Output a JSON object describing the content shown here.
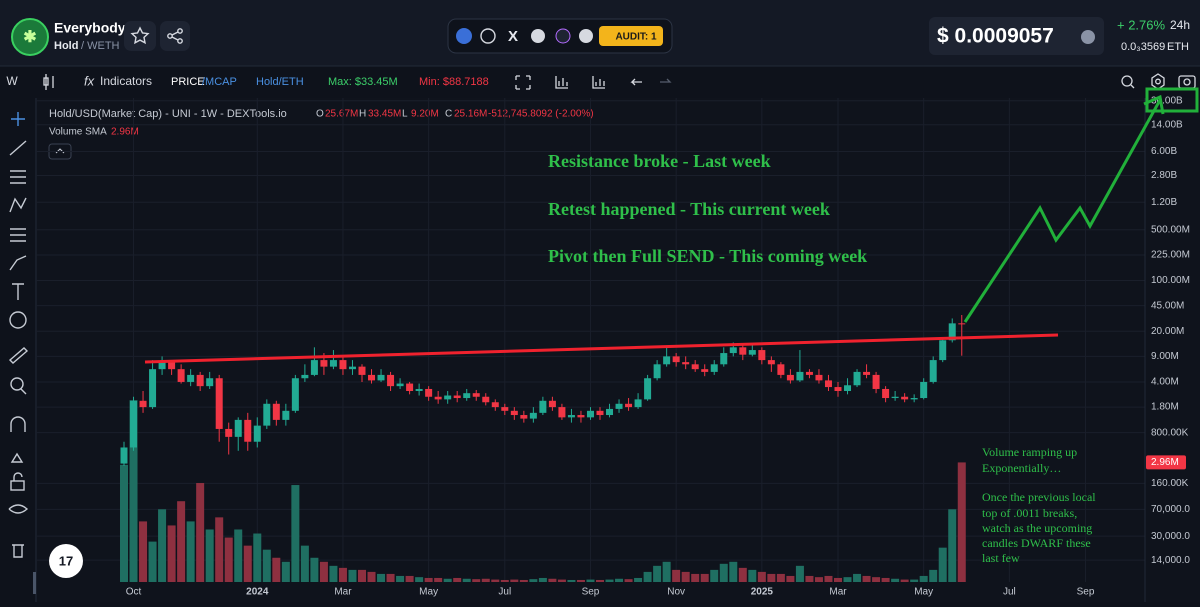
{
  "header": {
    "token_name": "Everybody",
    "pair_base": "Hold",
    "pair_quote": "/ WETH",
    "audit": "AUDIT: 1",
    "price": "$ 0.0009057",
    "change": "+ 2.76%",
    "period": "24h",
    "price_eth": "0.0₃3569",
    "eth": "ETH"
  },
  "toolbar": {
    "interval": "W",
    "indicators": "Indicators",
    "price": "PRICE",
    "mcap": "/MCAP",
    "pair": "Hold/ETH",
    "max": "Max: $33.45M",
    "min": "Min: $88.7188"
  },
  "chart_data": {
    "type": "candlestick",
    "title": "Hold/USD(Market Cap) - UNI - 1W - DEXTools.io",
    "readout": [
      {
        "key": "O",
        "value": "25.67M"
      },
      {
        "key": "H",
        "value": "33.45M"
      },
      {
        "key": "L",
        "value": "9.20M"
      },
      {
        "key": "C",
        "value": "25.16M"
      }
    ],
    "readout_change": "-512,745.8092 (-2.00%)",
    "volume_label": "Volume SMA",
    "volume_sma": "2.96M",
    "log_scale": true,
    "grid": true,
    "up_color": "#22ab94",
    "down_color": "#f23645",
    "volume_up_color": "#1f6f62",
    "volume_down_color": "#8e3040",
    "annotations": [
      "Resistance broke - Last week",
      "Retest happened - This current week",
      "Pivot then Full SEND - This coming week"
    ],
    "volume_note": [
      "Volume ramping up",
      "Exponentially…",
      "Once the previous local",
      "top of .0011 breaks,",
      "watch as the upcoming",
      "candles DWARF these",
      "last few"
    ],
    "ylim": [
      7000,
      36000000000
    ],
    "yticks": [
      {
        "value": 30000000000,
        "label": "30.00B"
      },
      {
        "value": 14000000000,
        "label": "14.00B"
      },
      {
        "value": 6000000000,
        "label": "6.00B"
      },
      {
        "value": 2800000000,
        "label": "2.80B"
      },
      {
        "value": 1200000000,
        "label": "1.20B"
      },
      {
        "value": 500000000,
        "label": "500.00M"
      },
      {
        "value": 225000000,
        "label": "225.00M"
      },
      {
        "value": 100000000,
        "label": "100.00M"
      },
      {
        "value": 45000000,
        "label": "45.00M"
      },
      {
        "value": 20000000,
        "label": "20.00M"
      },
      {
        "value": 9000000,
        "label": "9.00M"
      },
      {
        "value": 4000000,
        "label": "4.00M"
      },
      {
        "value": 1800000,
        "label": "1.80M"
      },
      {
        "value": 800000,
        "label": "800.00K"
      },
      {
        "value": 160000,
        "label": "160.00K"
      },
      {
        "value": 70000,
        "label": "70,000.0"
      },
      {
        "value": 30000,
        "label": "30,000.0"
      },
      {
        "value": 14000,
        "label": "14,000.0"
      }
    ],
    "y2lim": [
      0,
      5000000
    ],
    "categories": [
      null,
      "Oct",
      null,
      null,
      null,
      null,
      null,
      null,
      null,
      null,
      null,
      null,
      null,
      null,
      "2024",
      null,
      null,
      null,
      null,
      null,
      null,
      null,
      null,
      "Mar",
      null,
      null,
      null,
      null,
      null,
      null,
      null,
      null,
      "May",
      null,
      null,
      null,
      null,
      null,
      null,
      null,
      "Jul",
      null,
      null,
      null,
      null,
      null,
      null,
      null,
      null,
      "Sep",
      null,
      null,
      null,
      null,
      null,
      null,
      null,
      null,
      "Nov",
      null,
      null,
      null,
      null,
      null,
      null,
      null,
      null,
      "2025",
      null,
      null,
      null,
      null,
      null,
      null,
      null,
      "Mar",
      null,
      null,
      null,
      null,
      null,
      null,
      null,
      null,
      "May",
      null,
      null,
      null,
      null,
      null,
      null,
      null,
      null,
      "Jul",
      null,
      null,
      null,
      null,
      null,
      null,
      null,
      "Sep"
    ],
    "open": [
      300000,
      500000,
      2200000,
      1800000,
      6000000,
      7500000,
      6000000,
      4000000,
      5000000,
      3500000,
      4500000,
      900000,
      700000,
      1200000,
      600000,
      1000000,
      2000000,
      1200000,
      1600000,
      4500000,
      5000000,
      8000000,
      6500000,
      8000000,
      6000000,
      6500000,
      5000000,
      4200000,
      5000000,
      3500000,
      3800000,
      3000000,
      3200000,
      2500000,
      2300000,
      2600000,
      2400000,
      2800000,
      2500000,
      2100000,
      1800000,
      1600000,
      1400000,
      1250000,
      1500000,
      2200000,
      1800000,
      1300000,
      1400000,
      1300000,
      1600000,
      1400000,
      1700000,
      2000000,
      1800000,
      2300000,
      4500000,
      7000000,
      9000000,
      7500000,
      7000000,
      6000000,
      5500000,
      7000000,
      10000000,
      12000000,
      9500000,
      11000000,
      8000000,
      7000000,
      5000000,
      4200000,
      5500000,
      5000000,
      4200000,
      3400000,
      3000000,
      3600000,
      5500000,
      5000000,
      3200000,
      2400000,
      2500000,
      2300000,
      2400000,
      4000000,
      8000000,
      15000000,
      25670000,
      null,
      null,
      null,
      null,
      null,
      null,
      null,
      null,
      null,
      null,
      null,
      null,
      null
    ],
    "high": [
      600000,
      2500000,
      3000000,
      8000000,
      9000000,
      8000000,
      7000000,
      6000000,
      5500000,
      5500000,
      5000000,
      1100000,
      1300000,
      1500000,
      1300000,
      2300000,
      2200000,
      2000000,
      5000000,
      7000000,
      12000000,
      10000000,
      11000000,
      9000000,
      8000000,
      7000000,
      6000000,
      6000000,
      5500000,
      4500000,
      4000000,
      3800000,
      3500000,
      3000000,
      3000000,
      3000000,
      3200000,
      3100000,
      2800000,
      2300000,
      2000000,
      1800000,
      1600000,
      1800000,
      2500000,
      2500000,
      2000000,
      1700000,
      1600000,
      1800000,
      1800000,
      2000000,
      2300000,
      2400000,
      2800000,
      5000000,
      8000000,
      12000000,
      10000000,
      9000000,
      8000000,
      7000000,
      8000000,
      12000000,
      14000000,
      13000000,
      13000000,
      12000000,
      9000000,
      7500000,
      6000000,
      11000000,
      6000000,
      6000000,
      5000000,
      4000000,
      4500000,
      6000000,
      7000000,
      5500000,
      3500000,
      3000000,
      2800000,
      2700000,
      4500000,
      9000000,
      16000000,
      30000000,
      33450000,
      null,
      null,
      null,
      null,
      null,
      null,
      null,
      null,
      null,
      null,
      null,
      null,
      null
    ],
    "low": [
      280000,
      450000,
      1500000,
      1700000,
      5000000,
      5000000,
      3800000,
      3500000,
      3000000,
      3200000,
      600000,
      400000,
      450000,
      450000,
      500000,
      900000,
      1000000,
      1000000,
      1500000,
      4000000,
      4800000,
      5000000,
      6000000,
      5000000,
      5000000,
      4000000,
      3800000,
      4000000,
      3000000,
      3200000,
      2700000,
      2600000,
      2200000,
      2000000,
      2000000,
      2100000,
      2200000,
      2200000,
      1900000,
      1600000,
      1400000,
      1200000,
      1100000,
      1100000,
      1400000,
      1600000,
      1200000,
      1100000,
      1100000,
      1200000,
      1200000,
      1300000,
      1500000,
      1600000,
      1700000,
      2200000,
      4200000,
      6500000,
      6500000,
      6000000,
      5500000,
      4800000,
      5000000,
      6500000,
      9000000,
      8000000,
      9000000,
      7000000,
      5500000,
      4500000,
      3800000,
      4000000,
      4500000,
      3800000,
      3000000,
      2500000,
      2700000,
      3400000,
      4500000,
      2800000,
      2100000,
      2200000,
      2100000,
      2100000,
      2300000,
      3800000,
      7500000,
      14000000,
      9200000,
      null,
      null,
      null,
      null,
      null,
      null,
      null,
      null,
      null,
      null,
      null,
      null,
      null
    ],
    "close": [
      500000,
      2200000,
      1800000,
      6000000,
      7500000,
      6000000,
      4000000,
      5000000,
      3500000,
      4500000,
      900000,
      700000,
      1200000,
      600000,
      1000000,
      2000000,
      1200000,
      1600000,
      4500000,
      5000000,
      8000000,
      6500000,
      8000000,
      6000000,
      6500000,
      5000000,
      4200000,
      5000000,
      3500000,
      3800000,
      3000000,
      3200000,
      2500000,
      2300000,
      2600000,
      2400000,
      2800000,
      2500000,
      2100000,
      1800000,
      1600000,
      1400000,
      1250000,
      1500000,
      2200000,
      1800000,
      1300000,
      1400000,
      1300000,
      1600000,
      1400000,
      1700000,
      2000000,
      1800000,
      2300000,
      4500000,
      7000000,
      9000000,
      7500000,
      7000000,
      6000000,
      5500000,
      7000000,
      10000000,
      12000000,
      9500000,
      11000000,
      8000000,
      7000000,
      5000000,
      4200000,
      5500000,
      5000000,
      4200000,
      3400000,
      3000000,
      3600000,
      5500000,
      5000000,
      3200000,
      2400000,
      2500000,
      2300000,
      2400000,
      4000000,
      8000000,
      15000000,
      25670000,
      25160000,
      null,
      null,
      null,
      null,
      null,
      null,
      null,
      null,
      null,
      null,
      null,
      null,
      null
    ],
    "volume": [
      2900000,
      4500000,
      1500000,
      1000000,
      1800000,
      1400000,
      2000000,
      1500000,
      2450000,
      1300000,
      1600000,
      1100000,
      1300000,
      900000,
      1200000,
      800000,
      600000,
      500000,
      2400000,
      900000,
      600000,
      500000,
      400000,
      350000,
      300000,
      300000,
      250000,
      200000,
      200000,
      150000,
      150000,
      120000,
      100000,
      100000,
      80000,
      100000,
      80000,
      70000,
      80000,
      60000,
      50000,
      60000,
      50000,
      70000,
      100000,
      80000,
      60000,
      50000,
      50000,
      60000,
      50000,
      60000,
      80000,
      70000,
      100000,
      250000,
      400000,
      500000,
      300000,
      250000,
      200000,
      200000,
      300000,
      450000,
      500000,
      350000,
      300000,
      250000,
      200000,
      200000,
      150000,
      400000,
      150000,
      120000,
      150000,
      100000,
      120000,
      200000,
      150000,
      120000,
      100000,
      80000,
      60000,
      60000,
      150000,
      300000,
      850000,
      1800000,
      2960000,
      null,
      null,
      null,
      null,
      null,
      null,
      null,
      null,
      null,
      null,
      null,
      null,
      null
    ]
  }
}
